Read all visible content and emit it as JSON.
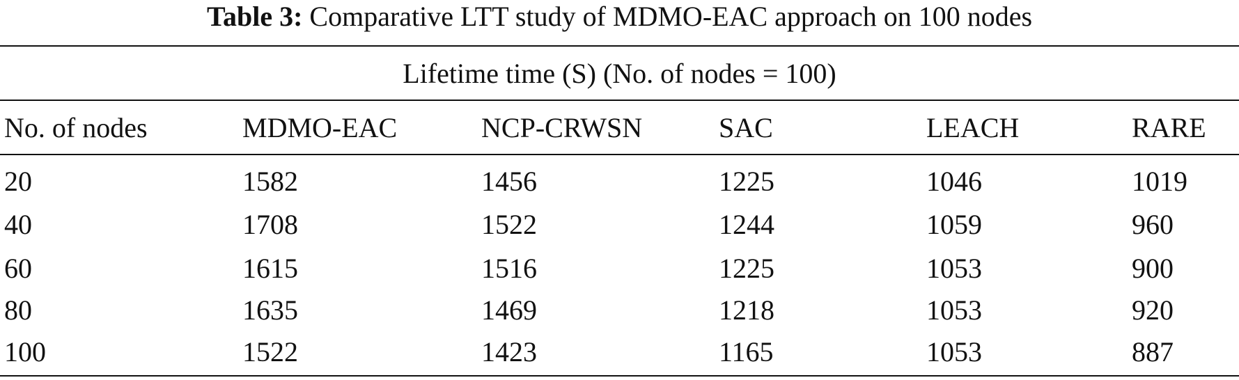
{
  "caption": {
    "label": "Table 3:",
    "text": "Comparative LTT study of MDMO-EAC approach on 100 nodes"
  },
  "table": {
    "group_header": "Lifetime time (S) (No. of nodes = 100)",
    "columns": [
      "No. of nodes",
      "MDMO-EAC",
      "NCP-CRWSN",
      "SAC",
      "LEACH",
      "RARE"
    ],
    "rows": [
      [
        "20",
        "1582",
        "1456",
        "1225",
        "1046",
        "1019"
      ],
      [
        "40",
        "1708",
        "1522",
        "1244",
        "1059",
        "960"
      ],
      [
        "60",
        "1615",
        "1516",
        "1225",
        "1053",
        "900"
      ],
      [
        "80",
        "1635",
        "1469",
        "1218",
        "1053",
        "920"
      ],
      [
        "100",
        "1522",
        "1423",
        "1165",
        "1053",
        "887"
      ]
    ]
  }
}
